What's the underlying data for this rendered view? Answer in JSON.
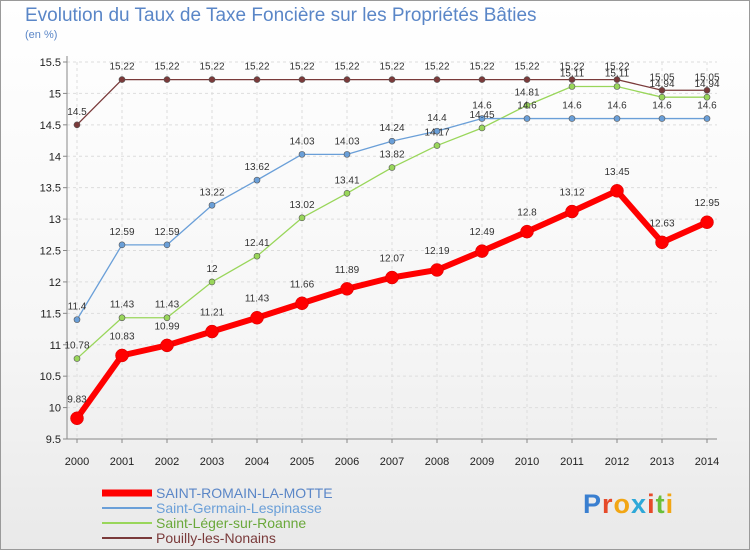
{
  "chart_data": {
    "type": "line",
    "title": "Evolution du Taux de Taxe Foncière sur les Propriétés Bâties",
    "ylabel": "(en %)",
    "xlabel": "",
    "ylim": [
      9.5,
      15.5
    ],
    "yticks": [
      "9.5",
      "10",
      "10.5",
      "11",
      "11.5",
      "12",
      "12.5",
      "13",
      "13.5",
      "14",
      "14.5",
      "15",
      "15.5"
    ],
    "categories": [
      "2000",
      "2001",
      "2002",
      "2003",
      "2004",
      "2005",
      "2006",
      "2007",
      "2008",
      "2009",
      "2010",
      "2011",
      "2012",
      "2013",
      "2014"
    ],
    "series": [
      {
        "name": "SAINT-ROMAIN-LA-MOTTE",
        "color": "#ff0000",
        "values": [
          9.83,
          10.83,
          10.99,
          11.21,
          11.43,
          11.66,
          11.89,
          12.07,
          12.19,
          12.49,
          12.8,
          13.12,
          13.45,
          12.63,
          12.95
        ],
        "labels": [
          "9.83",
          "10.83",
          "10.99",
          "11.21",
          "11.43",
          "11.66",
          "11.89",
          "12.07",
          "12.19",
          "12.49",
          "12.8",
          "13.12",
          "13.45",
          "12.63",
          "12.95"
        ]
      },
      {
        "name": "Saint-Germain-Lespinasse",
        "color": "#6a9fd8",
        "values": [
          11.4,
          12.59,
          12.59,
          13.22,
          13.62,
          14.03,
          14.03,
          14.24,
          14.4,
          14.6,
          14.6,
          14.6,
          14.6,
          14.6,
          14.6
        ],
        "labels": [
          "11.4",
          "12.59",
          "12.59",
          "13.22",
          "13.62",
          "14.03",
          "14.03",
          "14.24",
          "14.4",
          "14.6",
          "14.6",
          "14.6",
          "14.6",
          "14.6",
          "14.6"
        ]
      },
      {
        "name": "Saint-Léger-sur-Roanne",
        "color": "#99d65a",
        "values": [
          10.78,
          11.43,
          11.43,
          12,
          12.41,
          13.02,
          13.41,
          13.82,
          14.17,
          14.45,
          14.81,
          15.11,
          15.11,
          14.94,
          14.94
        ],
        "labels": [
          "10.78",
          "11.43",
          "11.43",
          "12",
          "12.41",
          "13.02",
          "13.41",
          "13.82",
          "14.17",
          "14.45",
          "14.81",
          "15.11",
          "15.11",
          "14.94",
          "14.94"
        ]
      },
      {
        "name": "Pouilly-les-Nonains",
        "color": "#7a3a3a",
        "values": [
          14.5,
          15.22,
          15.22,
          15.22,
          15.22,
          15.22,
          15.22,
          15.22,
          15.22,
          15.22,
          15.22,
          15.22,
          15.22,
          15.05,
          15.05
        ],
        "labels": [
          "14.5",
          "15.22",
          "15.22",
          "15.22",
          "15.22",
          "15.22",
          "15.22",
          "15.22",
          "15.22",
          "15.22",
          "15.22",
          "15.22",
          "15.22",
          "15.05",
          "15.05"
        ]
      }
    ],
    "legend_position": "bottom-left"
  },
  "brand": {
    "letters": [
      "P",
      "r",
      "o",
      "x",
      "i",
      "t",
      "i"
    ],
    "colors": [
      "#3a7fd0",
      "#e64a2a",
      "#f2a614",
      "#2ea8d8",
      "#e64a2a",
      "#6bbf3a",
      "#f2a614"
    ]
  }
}
